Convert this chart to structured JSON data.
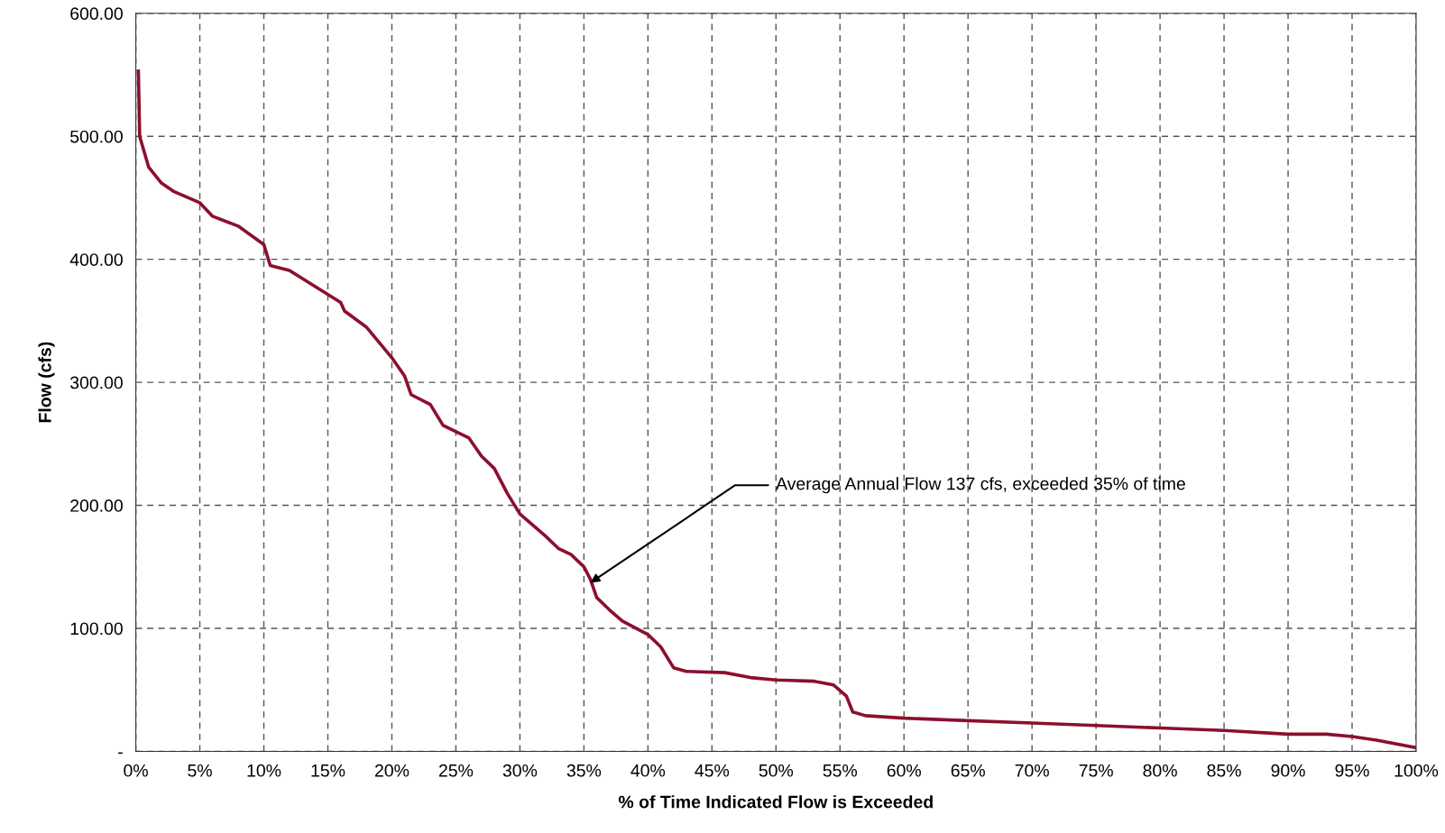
{
  "chart_data": {
    "type": "line",
    "xlabel": "% of Time Indicated Flow is Exceeded",
    "ylabel": "Flow (cfs)",
    "x": [
      0.2,
      0.3,
      1,
      2,
      3,
      5,
      6,
      8,
      10,
      10.5,
      12,
      14,
      16,
      16.3,
      18,
      20,
      21,
      21.5,
      23,
      24,
      26,
      27,
      28,
      29,
      30,
      32,
      33,
      34,
      35,
      35.5,
      36,
      37,
      38,
      40,
      41,
      42,
      43,
      46,
      48,
      50,
      53,
      54.5,
      55.5,
      56,
      57,
      60,
      65,
      70,
      75,
      80,
      85,
      90,
      93,
      95,
      97,
      100
    ],
    "series": [
      {
        "color": "#8c0f2e",
        "values": [
          553,
          500,
          475,
          462,
          455,
          446,
          435,
          427,
          412,
          395,
          391,
          378,
          365,
          358,
          345,
          320,
          305,
          290,
          282,
          265,
          255,
          240,
          230,
          210,
          193,
          175,
          165,
          160,
          150,
          140,
          125,
          115,
          106,
          95,
          85,
          68,
          65,
          64,
          60,
          58,
          57,
          54,
          45,
          32,
          29,
          27,
          25,
          23,
          21,
          19,
          17,
          14,
          14,
          12,
          9,
          3
        ]
      }
    ],
    "xlim": [
      0,
      100
    ],
    "ylim": [
      0,
      600
    ],
    "xticks": [
      {
        "value": 0,
        "label": "0%"
      },
      {
        "value": 5,
        "label": "5%"
      },
      {
        "value": 10,
        "label": "10%"
      },
      {
        "value": 15,
        "label": "15%"
      },
      {
        "value": 20,
        "label": "20%"
      },
      {
        "value": 25,
        "label": "25%"
      },
      {
        "value": 30,
        "label": "30%"
      },
      {
        "value": 35,
        "label": "35%"
      },
      {
        "value": 40,
        "label": "40%"
      },
      {
        "value": 45,
        "label": "45%"
      },
      {
        "value": 50,
        "label": "50%"
      },
      {
        "value": 55,
        "label": "55%"
      },
      {
        "value": 60,
        "label": "60%"
      },
      {
        "value": 65,
        "label": "65%"
      },
      {
        "value": 70,
        "label": "70%"
      },
      {
        "value": 75,
        "label": "75%"
      },
      {
        "value": 80,
        "label": "80%"
      },
      {
        "value": 85,
        "label": "85%"
      },
      {
        "value": 90,
        "label": "90%"
      },
      {
        "value": 95,
        "label": "95%"
      },
      {
        "value": 100,
        "label": "100%"
      }
    ],
    "yticks": [
      {
        "value": 0,
        "label": "-"
      },
      {
        "value": 100,
        "label": "100.00"
      },
      {
        "value": 200,
        "label": "200.00"
      },
      {
        "value": 300,
        "label": "300.00"
      },
      {
        "value": 400,
        "label": "400.00"
      },
      {
        "value": 500,
        "label": "500.00"
      },
      {
        "value": 600,
        "label": "600.00"
      }
    ],
    "annotations": [
      {
        "text": "Average Annual Flow 137 cfs, exceeded 35% of time",
        "x": 35.5,
        "y": 137
      }
    ],
    "grid": true,
    "marker": "none",
    "line_style": "solid"
  }
}
